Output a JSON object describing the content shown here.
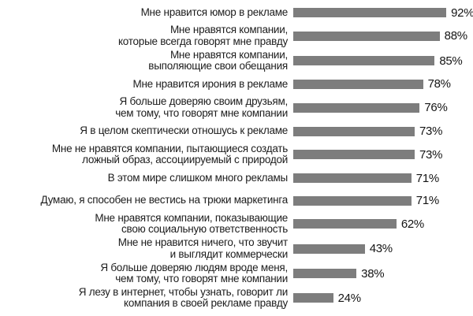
{
  "chart_data": {
    "type": "bar",
    "orientation": "horizontal",
    "title": "",
    "xlabel": "",
    "ylabel": "",
    "xlim": [
      0,
      100
    ],
    "grid": false,
    "legend": false,
    "bar_color": "#7d7d7d",
    "value_suffix": "%",
    "items": [
      {
        "label_lines": [
          "Мне нравится юмор в рекламе"
        ],
        "value": 92,
        "value_label": "92%"
      },
      {
        "label_lines": [
          "Мне нравятся компании,",
          "которые всегда говорят мне правду"
        ],
        "value": 88,
        "value_label": "88%"
      },
      {
        "label_lines": [
          "Мне нравятся компании,",
          "выполяющие свои обещания"
        ],
        "value": 85,
        "value_label": "85%"
      },
      {
        "label_lines": [
          "Мне нравится ирония в рекламе"
        ],
        "value": 78,
        "value_label": "78%"
      },
      {
        "label_lines": [
          "Я больше доверяю своим друзьям,",
          "чем тому, что говорят мне компании"
        ],
        "value": 76,
        "value_label": "76%"
      },
      {
        "label_lines": [
          "Я в целом скептически отношусь к рекламе"
        ],
        "value": 73,
        "value_label": "73%"
      },
      {
        "label_lines": [
          "Мне не нравятся компании, пытающиеся создать",
          "ложный образ, ассоциируемый с природой"
        ],
        "value": 73,
        "value_label": "73%"
      },
      {
        "label_lines": [
          "В этом мире слишком много рекламы"
        ],
        "value": 71,
        "value_label": "71%"
      },
      {
        "label_lines": [
          "Думаю, я способен не вестись на трюки маркетинга"
        ],
        "value": 71,
        "value_label": "71%"
      },
      {
        "label_lines": [
          "Мне нравятся компании, показывающие",
          "свою социальную ответственность"
        ],
        "value": 62,
        "value_label": "62%"
      },
      {
        "label_lines": [
          "Мне не нравится ничего, что звучит",
          "и выглядит коммерчески"
        ],
        "value": 43,
        "value_label": "43%"
      },
      {
        "label_lines": [
          "Я больше доверяю людям вроде меня,",
          "чем тому, что говорят мне компании"
        ],
        "value": 38,
        "value_label": "38%"
      },
      {
        "label_lines": [
          "Я лезу в интернет, чтобы узнать, говорит ли",
          "компания в своей рекламе правду"
        ],
        "value": 24,
        "value_label": "24%"
      }
    ]
  }
}
